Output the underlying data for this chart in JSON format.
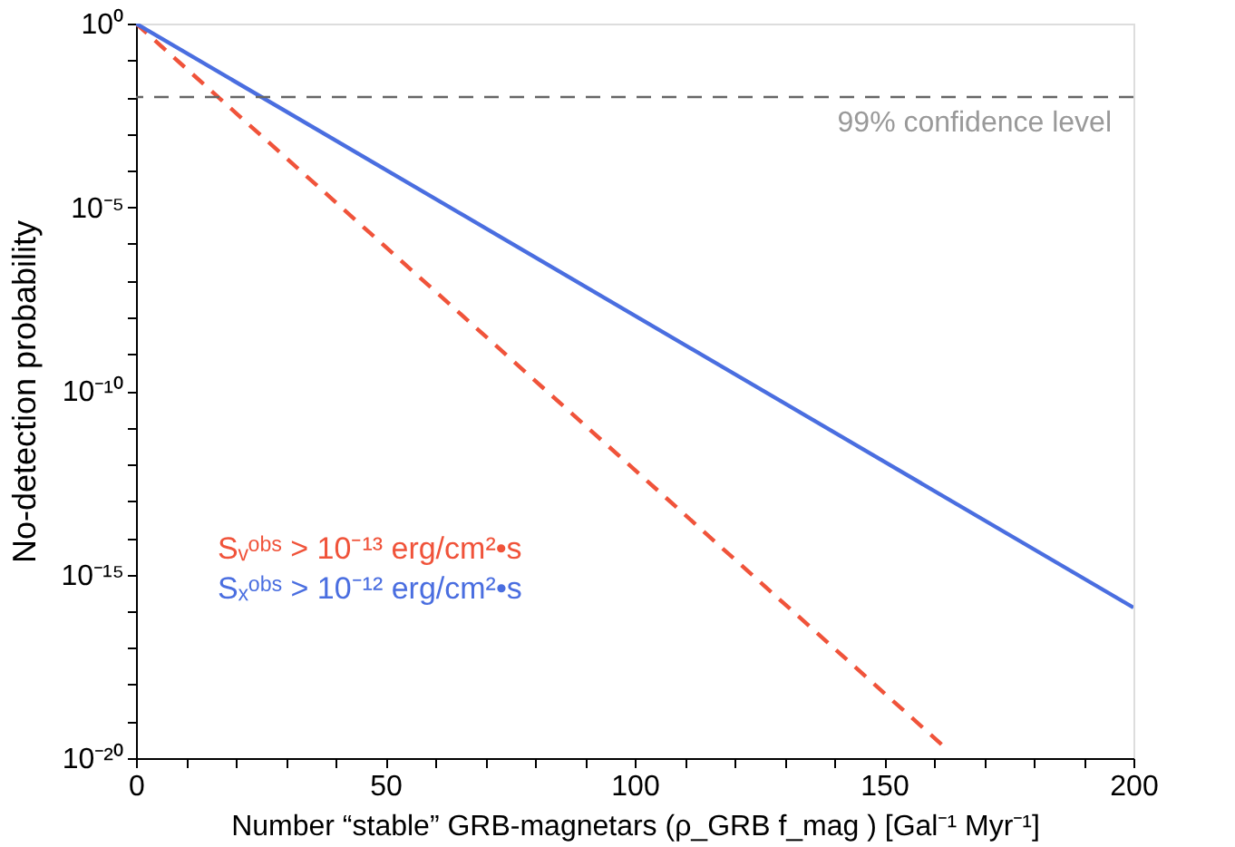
{
  "chart_data": {
    "type": "line",
    "xlabel": "Number “stable” GRB-magnetars (ρ_GRB f_mag ) [Gal⁻¹ Myr⁻¹]",
    "ylabel": "No-detection probability",
    "series": [
      {
        "name": "Sᵥᵒᵇˢ > 10⁻¹³ erg/cm²•s",
        "color": "#f0533a",
        "line_style": "dashed",
        "x": [
          0,
          162.5
        ],
        "values": [
          1,
          1.8e-20
        ]
      },
      {
        "name": "Sₓᵒᵇˢ > 10⁻¹² erg/cm²•s",
        "color": "#4a6ee0",
        "line_style": "solid",
        "x": [
          0,
          200
        ],
        "values": [
          1,
          1.26e-16
        ]
      }
    ],
    "log": "y",
    "xlim": [
      0,
      200
    ],
    "ylim": [
      1e-20,
      1
    ],
    "xticks": [
      0,
      {
        "value": 10,
        "label": null
      },
      {
        "value": 20,
        "label": null
      },
      {
        "value": 30,
        "label": null
      },
      {
        "value": 40,
        "label": null
      },
      50,
      {
        "value": 60,
        "label": null
      },
      {
        "value": 70,
        "label": null
      },
      {
        "value": 80,
        "label": null
      },
      {
        "value": 90,
        "label": null
      },
      100,
      {
        "value": 110,
        "label": null
      },
      {
        "value": 120,
        "label": null
      },
      {
        "value": 130,
        "label": null
      },
      {
        "value": 140,
        "label": null
      },
      150,
      {
        "value": 160,
        "label": null
      },
      {
        "value": 170,
        "label": null
      },
      {
        "value": 180,
        "label": null
      },
      {
        "value": 190,
        "label": null
      },
      200
    ],
    "yticks": [
      {
        "value": 1,
        "label": "10⁰"
      },
      {
        "value": 0.1,
        "label": null
      },
      {
        "value": 0.01,
        "label": null
      },
      {
        "value": 0.001,
        "label": null
      },
      {
        "value": 0.0001,
        "label": null
      },
      {
        "value": 1e-05,
        "label": "10⁻⁵"
      },
      {
        "value": 1e-06,
        "label": null
      },
      {
        "value": 1e-07,
        "label": null
      },
      {
        "value": 1e-08,
        "label": null
      },
      {
        "value": 1e-09,
        "label": null
      },
      {
        "value": 1e-10,
        "label": "10⁻¹⁰"
      },
      {
        "value": 1e-11,
        "label": null
      },
      {
        "value": 1e-12,
        "label": null
      },
      {
        "value": 1e-13,
        "label": null
      },
      {
        "value": 1e-14,
        "label": null
      },
      {
        "value": 1e-15,
        "label": "10⁻¹⁵"
      },
      {
        "value": 1e-16,
        "label": null
      },
      {
        "value": 1e-17,
        "label": null
      },
      {
        "value": 1e-18,
        "label": null
      },
      {
        "value": 1e-19,
        "label": null
      },
      {
        "value": 1e-20,
        "label": "10⁻²⁰"
      }
    ],
    "ref_lines": [
      {
        "axis": "y",
        "value": 0.01,
        "label": "99% confidence level",
        "color": "#666666",
        "line_style": "dashed"
      }
    ],
    "grid": false,
    "legend": "left"
  }
}
